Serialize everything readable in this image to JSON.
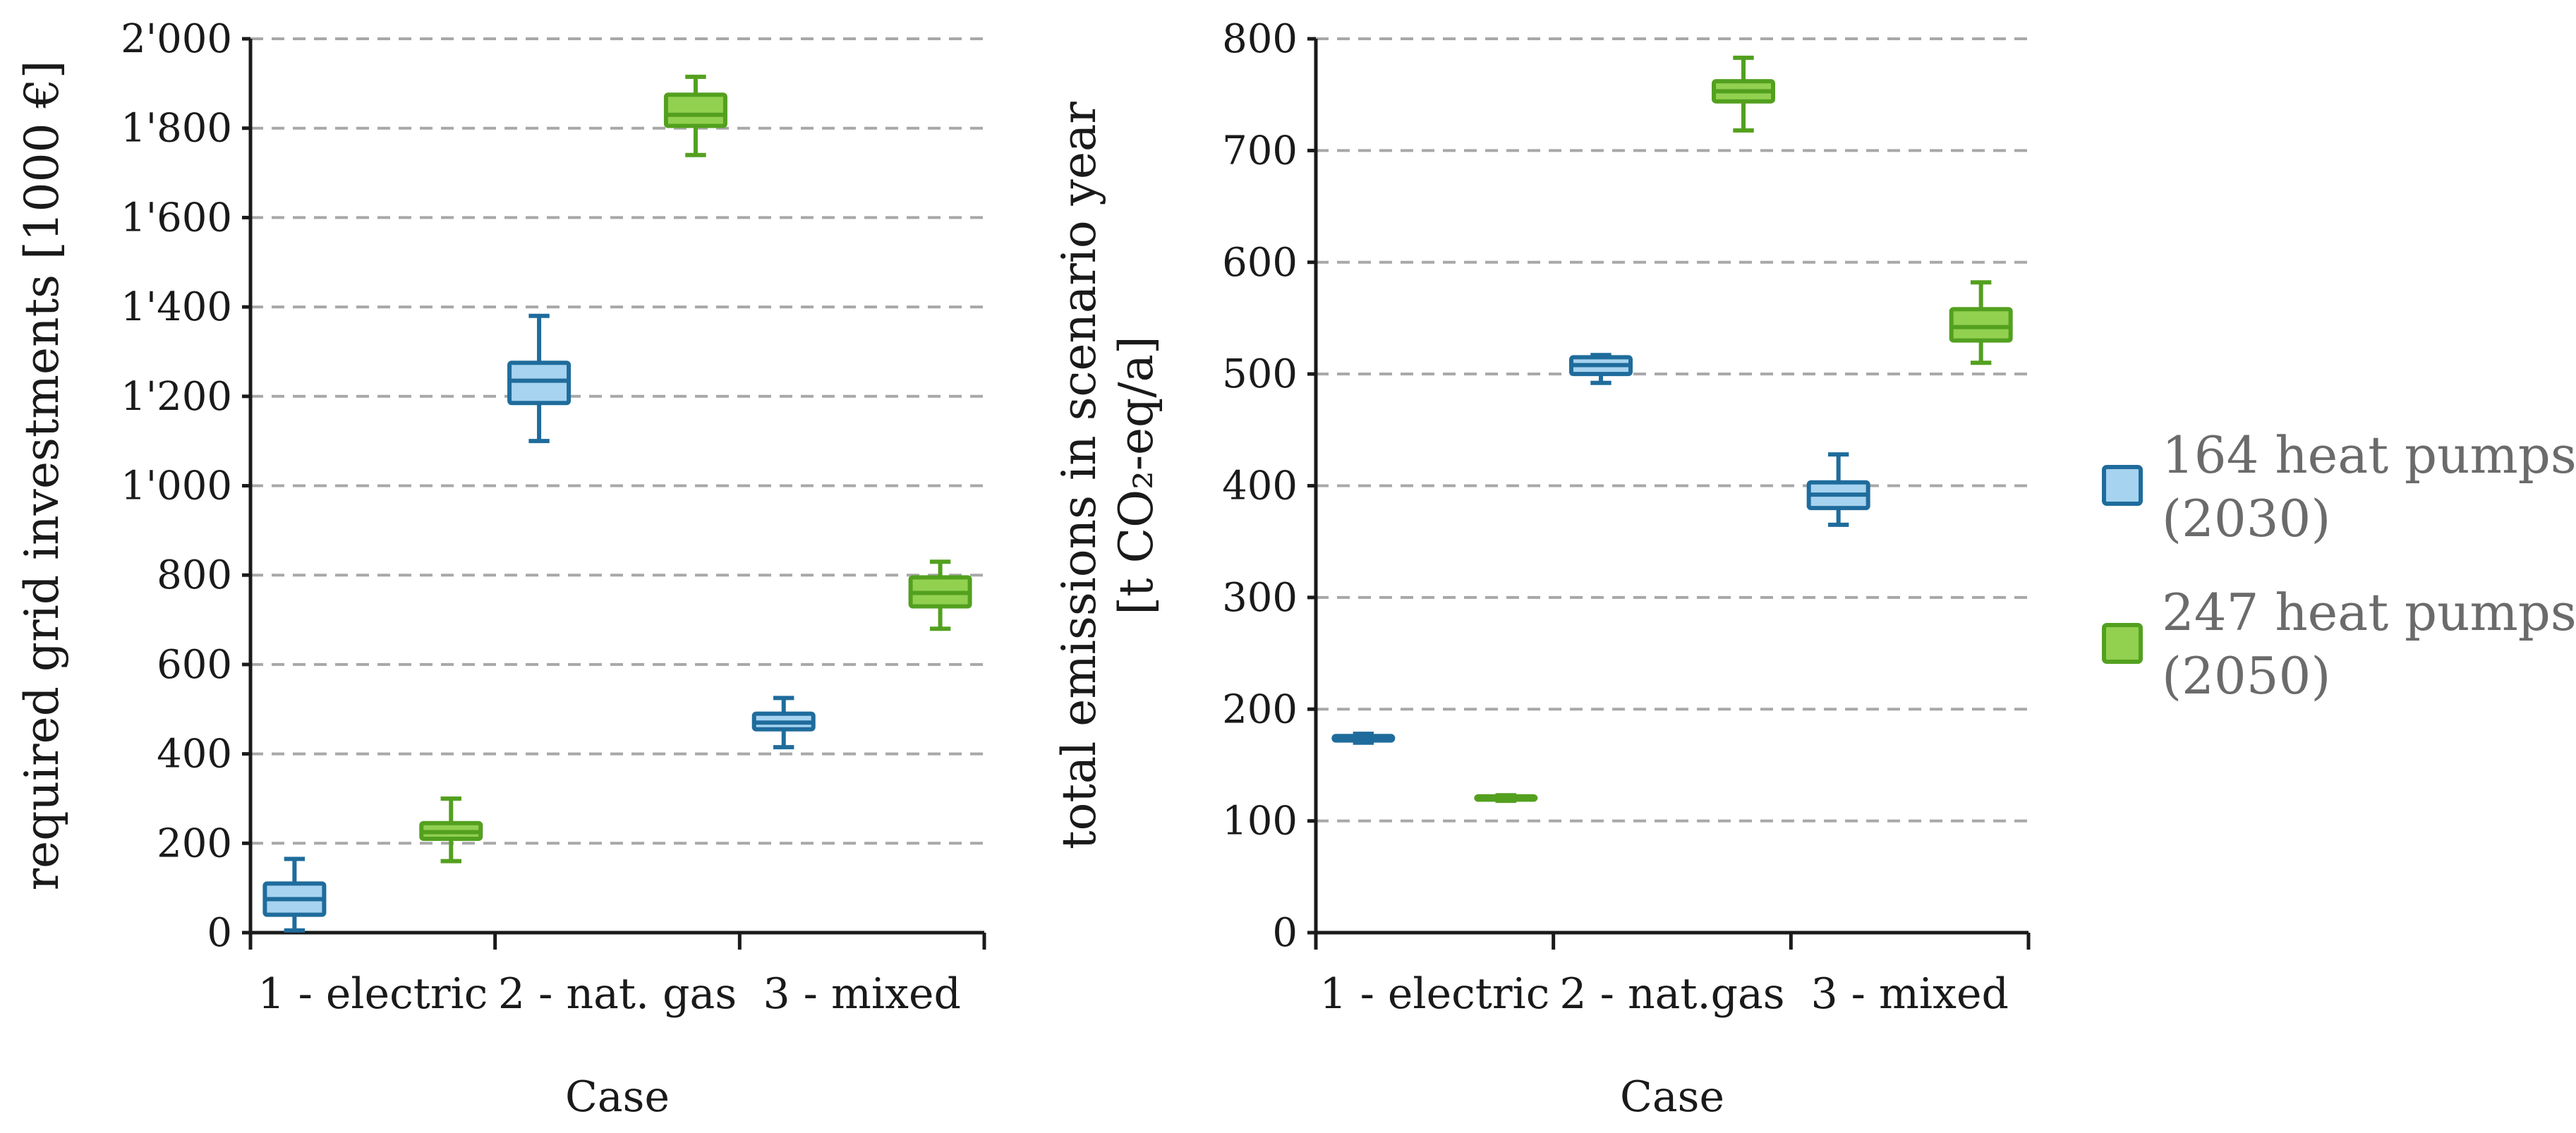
{
  "colors": {
    "blue_stroke": "#1f6c9c",
    "blue_fill": "#a6d3f0",
    "green_stroke": "#53a01f",
    "green_fill": "#92d050",
    "grid": "#a8a8a8"
  },
  "legend": {
    "items": [
      {
        "label_line1": "164 heat pumps",
        "label_line2": "(2030)",
        "series": "blue"
      },
      {
        "label_line1": "247 heat pumps",
        "label_line2": "(2050)",
        "series": "green"
      }
    ]
  },
  "chart_data": [
    {
      "type": "boxplot",
      "title": "",
      "xlabel": "Case",
      "ylabel": "required grid investments [1000 €]",
      "ylim": [
        0,
        2000
      ],
      "yticks": [
        0,
        200,
        400,
        600,
        800,
        1000,
        1200,
        1400,
        1600,
        1800,
        2000
      ],
      "ytick_labels": [
        "0",
        "200",
        "400",
        "600",
        "800",
        "1'000",
        "1'200",
        "1'400",
        "1'600",
        "1'800",
        "2'000"
      ],
      "grid": true,
      "categories": [
        "1 - electric",
        "2 - nat. gas",
        "3 - mixed"
      ],
      "series": [
        {
          "name": "164 heat pumps (2030)",
          "color": "blue",
          "boxes": [
            {
              "min": 5,
              "q1": 40,
              "median": 75,
              "q3": 110,
              "max": 165
            },
            {
              "min": 1100,
              "q1": 1185,
              "median": 1235,
              "q3": 1275,
              "max": 1380
            },
            {
              "min": 415,
              "q1": 455,
              "median": 470,
              "q3": 490,
              "max": 525
            }
          ]
        },
        {
          "name": "247 heat pumps (2050)",
          "color": "green",
          "boxes": [
            {
              "min": 160,
              "q1": 210,
              "median": 225,
              "q3": 245,
              "max": 300
            },
            {
              "min": 1740,
              "q1": 1805,
              "median": 1830,
              "q3": 1875,
              "max": 1915
            },
            {
              "min": 680,
              "q1": 730,
              "median": 760,
              "q3": 795,
              "max": 830
            }
          ]
        }
      ]
    },
    {
      "type": "boxplot",
      "title": "",
      "xlabel": "Case",
      "ylabel_line1": "total emissions in scenario year",
      "ylabel_line2": "[t CO₂-eq/a]",
      "ylim": [
        0,
        800
      ],
      "yticks": [
        0,
        100,
        200,
        300,
        400,
        500,
        600,
        700,
        800
      ],
      "ytick_labels": [
        "0",
        "100",
        "200",
        "300",
        "400",
        "500",
        "600",
        "700",
        "800"
      ],
      "grid": true,
      "categories": [
        "1 - electric",
        "2 - nat.gas",
        "3 - mixed"
      ],
      "series": [
        {
          "name": "164 heat pumps (2030)",
          "color": "blue",
          "boxes": [
            {
              "min": 170,
              "q1": 172,
              "median": 174,
              "q3": 176,
              "max": 178
            },
            {
              "min": 492,
              "q1": 500,
              "median": 508,
              "q3": 515,
              "max": 517
            },
            {
              "min": 365,
              "q1": 380,
              "median": 392,
              "q3": 403,
              "max": 428
            }
          ]
        },
        {
          "name": "247 heat pumps (2050)",
          "color": "green",
          "boxes": [
            {
              "min": 118,
              "q1": 119,
              "median": 120,
              "q3": 122,
              "max": 123
            },
            {
              "min": 718,
              "q1": 744,
              "median": 753,
              "q3": 762,
              "max": 783
            },
            {
              "min": 510,
              "q1": 530,
              "median": 542,
              "q3": 558,
              "max": 582
            }
          ]
        }
      ]
    }
  ]
}
